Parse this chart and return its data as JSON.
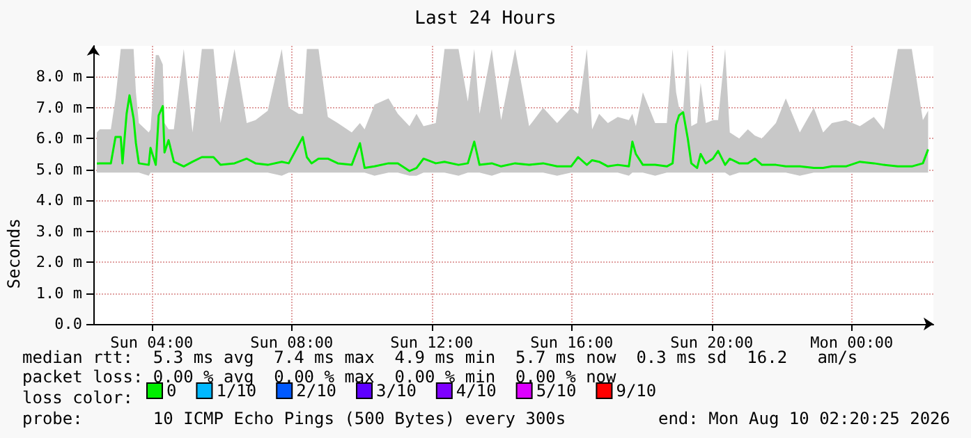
{
  "chart_data": {
    "type": "line",
    "title": "Last 24 Hours",
    "ylabel": "Seconds",
    "xlim": [
      "2026-08-09T02:20",
      "2026-08-10T02:20"
    ],
    "xticks": [
      {
        "value": "2026-08-09T04:00",
        "label": "Sun 04:00"
      },
      {
        "value": "2026-08-09T08:00",
        "label": "Sun 08:00"
      },
      {
        "value": "2026-08-09T12:00",
        "label": "Sun 12:00"
      },
      {
        "value": "2026-08-09T16:00",
        "label": "Sun 16:00"
      },
      {
        "value": "2026-08-09T20:00",
        "label": "Sun 20:00"
      },
      {
        "value": "2026-08-10T00:00",
        "label": "Mon 00:00"
      }
    ],
    "ylim": [
      0,
      9
    ],
    "yticks": [
      {
        "value": 0,
        "label": "0.0"
      },
      {
        "value": 1,
        "label": "1.0 m"
      },
      {
        "value": 2,
        "label": "2.0 m"
      },
      {
        "value": 3,
        "label": "3.0 m"
      },
      {
        "value": 4,
        "label": "4.0 m"
      },
      {
        "value": 5,
        "label": "5.0 m"
      },
      {
        "value": 6,
        "label": "6.0 m"
      },
      {
        "value": 7,
        "label": "7.0 m"
      },
      {
        "value": 8,
        "label": "8.0 m"
      }
    ],
    "grid": true,
    "legend": "bottom",
    "legend_title": "loss color:",
    "marker": "none",
    "line_style": "solid",
    "x": [
      "2026-08-09T02:26",
      "2026-08-09T02:31",
      "2026-08-09T02:50",
      "2026-08-09T02:58",
      "2026-08-09T03:07",
      "2026-08-09T03:10",
      "2026-08-09T03:17",
      "2026-08-09T03:22",
      "2026-08-09T03:29",
      "2026-08-09T03:33",
      "2026-08-09T03:38",
      "2026-08-09T03:55",
      "2026-08-09T03:58",
      "2026-08-09T04:07",
      "2026-08-09T04:12",
      "2026-08-09T04:19",
      "2026-08-09T04:22",
      "2026-08-09T04:29",
      "2026-08-09T04:38",
      "2026-08-09T04:55",
      "2026-08-09T05:10",
      "2026-08-09T05:26",
      "2026-08-09T05:46",
      "2026-08-09T05:58",
      "2026-08-09T06:22",
      "2026-08-09T06:43",
      "2026-08-09T06:58",
      "2026-08-09T07:19",
      "2026-08-09T07:43",
      "2026-08-09T07:55",
      "2026-08-09T08:12",
      "2026-08-09T08:19",
      "2026-08-09T08:26",
      "2026-08-09T08:34",
      "2026-08-09T08:46",
      "2026-08-09T09:02",
      "2026-08-09T09:19",
      "2026-08-09T09:43",
      "2026-08-09T09:57",
      "2026-08-09T10:05",
      "2026-08-09T10:22",
      "2026-08-09T10:46",
      "2026-08-09T11:02",
      "2026-08-09T11:22",
      "2026-08-09T11:34",
      "2026-08-09T11:46",
      "2026-08-09T12:07",
      "2026-08-09T12:22",
      "2026-08-09T12:46",
      "2026-08-09T13:02",
      "2026-08-09T13:13",
      "2026-08-09T13:22",
      "2026-08-09T13:43",
      "2026-08-09T13:59",
      "2026-08-09T14:23",
      "2026-08-09T14:47",
      "2026-08-09T15:11",
      "2026-08-09T15:35",
      "2026-08-09T15:59",
      "2026-08-09T16:11",
      "2026-08-09T16:26",
      "2026-08-09T16:35",
      "2026-08-09T16:47",
      "2026-08-09T17:02",
      "2026-08-09T17:19",
      "2026-08-09T17:38",
      "2026-08-09T17:44",
      "2026-08-09T17:50",
      "2026-08-09T18:02",
      "2026-08-09T18:23",
      "2026-08-09T18:43",
      "2026-08-09T18:53",
      "2026-08-09T18:59",
      "2026-08-09T19:04",
      "2026-08-09T19:11",
      "2026-08-09T19:19",
      "2026-08-09T19:25",
      "2026-08-09T19:35",
      "2026-08-09T19:41",
      "2026-08-09T19:50",
      "2026-08-09T20:02",
      "2026-08-09T20:11",
      "2026-08-09T20:23",
      "2026-08-09T20:31",
      "2026-08-09T20:47",
      "2026-08-09T21:02",
      "2026-08-09T21:14",
      "2026-08-09T21:26",
      "2026-08-09T21:50",
      "2026-08-09T22:07",
      "2026-08-09T22:31",
      "2026-08-09T22:55",
      "2026-08-09T23:11",
      "2026-08-09T23:26",
      "2026-08-09T23:50",
      "2026-08-10T00:14",
      "2026-08-10T00:38",
      "2026-08-10T00:55",
      "2026-08-10T01:19",
      "2026-08-10T01:43",
      "2026-08-10T02:02",
      "2026-08-10T02:11"
    ],
    "series": [
      {
        "name": "0",
        "color": "#00ee00",
        "values": [
          5.19,
          5.2,
          5.2,
          6.05,
          6.05,
          5.2,
          6.8,
          7.4,
          6.65,
          5.85,
          5.2,
          5.15,
          5.7,
          5.15,
          6.75,
          7.05,
          5.55,
          5.95,
          5.25,
          5.1,
          5.25,
          5.4,
          5.4,
          5.15,
          5.2,
          5.35,
          5.2,
          5.15,
          5.25,
          5.2,
          5.8,
          6.05,
          5.4,
          5.2,
          5.35,
          5.35,
          5.2,
          5.15,
          5.85,
          5.05,
          5.1,
          5.2,
          5.2,
          4.95,
          5.05,
          5.35,
          5.2,
          5.25,
          5.15,
          5.2,
          5.9,
          5.15,
          5.2,
          5.1,
          5.2,
          5.15,
          5.2,
          5.1,
          5.1,
          5.4,
          5.15,
          5.3,
          5.25,
          5.1,
          5.15,
          5.1,
          5.9,
          5.5,
          5.15,
          5.15,
          5.1,
          5.2,
          6.45,
          6.75,
          6.85,
          6.0,
          5.2,
          5.05,
          5.5,
          5.2,
          5.35,
          5.6,
          5.15,
          5.35,
          5.2,
          5.2,
          5.35,
          5.15,
          5.15,
          5.1,
          5.1,
          5.05,
          5.05,
          5.1,
          5.1,
          5.25,
          5.2,
          5.15,
          5.1,
          5.1,
          5.2,
          5.65
        ],
        "lower": [
          4.9,
          4.9,
          4.9,
          4.9,
          4.9,
          4.9,
          4.9,
          4.9,
          4.9,
          4.9,
          4.9,
          4.8,
          4.9,
          4.9,
          4.9,
          4.9,
          4.9,
          4.9,
          4.9,
          4.9,
          4.9,
          4.9,
          4.9,
          4.9,
          4.9,
          4.9,
          4.9,
          4.9,
          4.8,
          4.9,
          4.9,
          4.9,
          4.9,
          4.9,
          4.9,
          4.9,
          4.9,
          4.9,
          4.9,
          4.9,
          4.8,
          4.9,
          4.9,
          4.8,
          4.8,
          4.9,
          4.9,
          4.9,
          4.8,
          4.9,
          4.9,
          4.9,
          4.8,
          4.9,
          4.9,
          4.9,
          4.9,
          4.8,
          4.9,
          4.9,
          4.9,
          4.9,
          4.9,
          4.9,
          4.9,
          4.8,
          4.9,
          4.9,
          4.9,
          4.8,
          4.9,
          4.9,
          4.9,
          4.9,
          4.9,
          4.9,
          4.9,
          4.9,
          4.9,
          4.9,
          4.9,
          4.9,
          4.9,
          4.8,
          4.9,
          4.9,
          4.9,
          4.9,
          4.9,
          4.9,
          4.8,
          4.9,
          4.9,
          4.9,
          4.9,
          4.9,
          4.9,
          4.9,
          4.9,
          4.9,
          4.9,
          4.9
        ],
        "upper": [
          6.2,
          6.3,
          6.3,
          7.3,
          8.9,
          8.9,
          8.9,
          8.9,
          8.9,
          7.5,
          6.5,
          6.2,
          6.3,
          8.7,
          8.7,
          8.4,
          6.5,
          6.3,
          6.3,
          8.9,
          6.2,
          8.9,
          8.9,
          6.5,
          8.9,
          6.5,
          6.6,
          6.9,
          8.9,
          7.0,
          6.8,
          6.8,
          8.9,
          8.9,
          8.9,
          6.7,
          6.5,
          6.2,
          6.5,
          6.3,
          7.1,
          7.3,
          6.8,
          6.4,
          6.8,
          6.4,
          6.5,
          8.9,
          8.9,
          7.2,
          8.9,
          6.8,
          8.9,
          6.6,
          8.9,
          6.4,
          7.0,
          6.5,
          7.0,
          6.8,
          8.9,
          6.3,
          6.8,
          6.5,
          6.7,
          6.6,
          6.8,
          6.4,
          7.5,
          6.5,
          6.5,
          8.9,
          7.5,
          7.0,
          6.9,
          8.9,
          6.4,
          6.5,
          7.8,
          6.5,
          6.6,
          6.6,
          8.9,
          6.2,
          6.0,
          6.3,
          6.1,
          6.0,
          6.5,
          7.3,
          6.2,
          7.0,
          6.2,
          6.5,
          6.6,
          6.4,
          6.7,
          6.3,
          8.9,
          8.9,
          6.6,
          6.9
        ]
      },
      {
        "name": "1/10",
        "color": "#00b8ff",
        "values": [
          null,
          null,
          null,
          null,
          null,
          null,
          null,
          null,
          null,
          null,
          null,
          null,
          null,
          null,
          null,
          null,
          null,
          null,
          null,
          null,
          null,
          null,
          null,
          null,
          null,
          null,
          null,
          null,
          null,
          null,
          null,
          null,
          null,
          null,
          null,
          null,
          null,
          null,
          null,
          null,
          null,
          null,
          null,
          null,
          null,
          null,
          null,
          null,
          null,
          null,
          null,
          null,
          null,
          null,
          null,
          null,
          null,
          null,
          null,
          null,
          null,
          null,
          null,
          null,
          null,
          null,
          null,
          null,
          null,
          null,
          null,
          null,
          null,
          null,
          null,
          null,
          null,
          null,
          null,
          null,
          null,
          null,
          null,
          null,
          null,
          null,
          null,
          null,
          null,
          null,
          null,
          null,
          null,
          null,
          null,
          null,
          null,
          null,
          null,
          null,
          null,
          null
        ]
      },
      {
        "name": "2/10",
        "color": "#0059ff",
        "values": [
          null,
          null,
          null,
          null,
          null,
          null,
          null,
          null,
          null,
          null,
          null,
          null,
          null,
          null,
          null,
          null,
          null,
          null,
          null,
          null,
          null,
          null,
          null,
          null,
          null,
          null,
          null,
          null,
          null,
          null,
          null,
          null,
          null,
          null,
          null,
          null,
          null,
          null,
          null,
          null,
          null,
          null,
          null,
          null,
          null,
          null,
          null,
          null,
          null,
          null,
          null,
          null,
          null,
          null,
          null,
          null,
          null,
          null,
          null,
          null,
          null,
          null,
          null,
          null,
          null,
          null,
          null,
          null,
          null,
          null,
          null,
          null,
          null,
          null,
          null,
          null,
          null,
          null,
          null,
          null,
          null,
          null,
          null,
          null,
          null,
          null,
          null,
          null,
          null,
          null,
          null,
          null,
          null,
          null,
          null,
          null,
          null,
          null,
          null,
          null,
          null,
          null
        ]
      },
      {
        "name": "3/10",
        "color": "#5e00ff",
        "values": [
          null,
          null,
          null,
          null,
          null,
          null,
          null,
          null,
          null,
          null,
          null,
          null,
          null,
          null,
          null,
          null,
          null,
          null,
          null,
          null,
          null,
          null,
          null,
          null,
          null,
          null,
          null,
          null,
          null,
          null,
          null,
          null,
          null,
          null,
          null,
          null,
          null,
          null,
          null,
          null,
          null,
          null,
          null,
          null,
          null,
          null,
          null,
          null,
          null,
          null,
          null,
          null,
          null,
          null,
          null,
          null,
          null,
          null,
          null,
          null,
          null,
          null,
          null,
          null,
          null,
          null,
          null,
          null,
          null,
          null,
          null,
          null,
          null,
          null,
          null,
          null,
          null,
          null,
          null,
          null,
          null,
          null,
          null,
          null,
          null,
          null,
          null,
          null,
          null,
          null,
          null,
          null,
          null,
          null,
          null,
          null,
          null,
          null,
          null,
          null,
          null,
          null
        ]
      },
      {
        "name": "4/10",
        "color": "#7e00ff",
        "values": [
          null,
          null,
          null,
          null,
          null,
          null,
          null,
          null,
          null,
          null,
          null,
          null,
          null,
          null,
          null,
          null,
          null,
          null,
          null,
          null,
          null,
          null,
          null,
          null,
          null,
          null,
          null,
          null,
          null,
          null,
          null,
          null,
          null,
          null,
          null,
          null,
          null,
          null,
          null,
          null,
          null,
          null,
          null,
          null,
          null,
          null,
          null,
          null,
          null,
          null,
          null,
          null,
          null,
          null,
          null,
          null,
          null,
          null,
          null,
          null,
          null,
          null,
          null,
          null,
          null,
          null,
          null,
          null,
          null,
          null,
          null,
          null,
          null,
          null,
          null,
          null,
          null,
          null,
          null,
          null,
          null,
          null,
          null,
          null,
          null,
          null,
          null,
          null,
          null,
          null,
          null,
          null,
          null,
          null,
          null,
          null,
          null,
          null,
          null,
          null,
          null,
          null
        ]
      },
      {
        "name": "5/10",
        "color": "#dd00ff",
        "values": [
          null,
          null,
          null,
          null,
          null,
          null,
          null,
          null,
          null,
          null,
          null,
          null,
          null,
          null,
          null,
          null,
          null,
          null,
          null,
          null,
          null,
          null,
          null,
          null,
          null,
          null,
          null,
          null,
          null,
          null,
          null,
          null,
          null,
          null,
          null,
          null,
          null,
          null,
          null,
          null,
          null,
          null,
          null,
          null,
          null,
          null,
          null,
          null,
          null,
          null,
          null,
          null,
          null,
          null,
          null,
          null,
          null,
          null,
          null,
          null,
          null,
          null,
          null,
          null,
          null,
          null,
          null,
          null,
          null,
          null,
          null,
          null,
          null,
          null,
          null,
          null,
          null,
          null,
          null,
          null,
          null,
          null,
          null,
          null,
          null,
          null,
          null,
          null,
          null,
          null,
          null,
          null,
          null,
          null,
          null,
          null,
          null,
          null,
          null,
          null,
          null,
          null
        ]
      },
      {
        "name": "9/10",
        "color": "#ff0000",
        "values": [
          null,
          null,
          null,
          null,
          null,
          null,
          null,
          null,
          null,
          null,
          null,
          null,
          null,
          null,
          null,
          null,
          null,
          null,
          null,
          null,
          null,
          null,
          null,
          null,
          null,
          null,
          null,
          null,
          null,
          null,
          null,
          null,
          null,
          null,
          null,
          null,
          null,
          null,
          null,
          null,
          null,
          null,
          null,
          null,
          null,
          null,
          null,
          null,
          null,
          null,
          null,
          null,
          null,
          null,
          null,
          null,
          null,
          null,
          null,
          null,
          null,
          null,
          null,
          null,
          null,
          null,
          null,
          null,
          null,
          null,
          null,
          null,
          null,
          null,
          null,
          null,
          null,
          null,
          null,
          null,
          null,
          null,
          null,
          null,
          null,
          null,
          null,
          null,
          null,
          null,
          null,
          null,
          null,
          null,
          null,
          null,
          null,
          null,
          null,
          null,
          null,
          null
        ]
      }
    ],
    "annotations": [
      "median rtt:  5.3 ms avg  7.4 ms max  4.9 ms min  5.7 ms now  0.3 ms sd  16.2   am/s",
      "packet loss: 0.00 % avg  0.00 % max  0.00 % min  0.00 % now",
      "probe:       10 ICMP Echo Pings (500 Bytes) every 300s",
      "end: Mon Aug 10 02:20:25 2026"
    ]
  }
}
